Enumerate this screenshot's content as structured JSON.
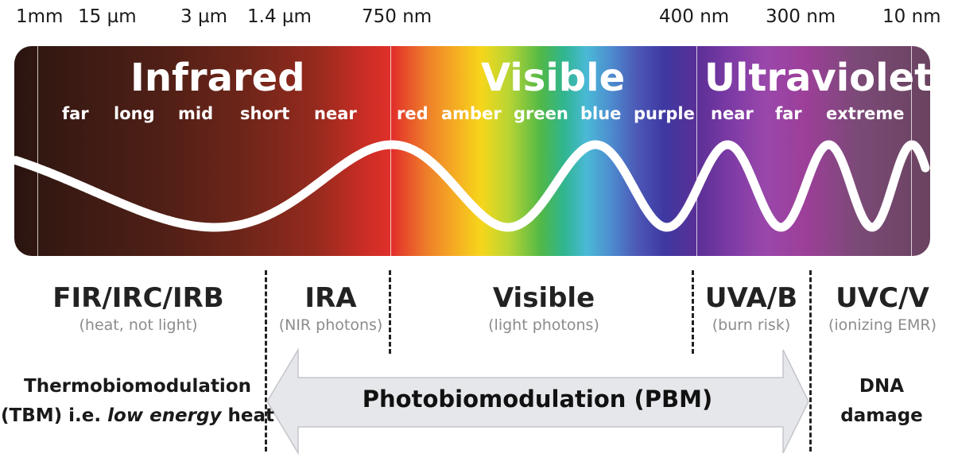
{
  "scale": [
    "1mm",
    "15 µm",
    "3 µm",
    "1.4 µm",
    "750 nm",
    "400 nm",
    "300 nm",
    "10 nm"
  ],
  "regions": {
    "infrared": {
      "title": "Infrared",
      "subs": [
        "far",
        "long",
        "mid",
        "short",
        "near"
      ]
    },
    "visible": {
      "title": "Visible",
      "subs": [
        "red",
        "amber",
        "green",
        "blue",
        "purple"
      ]
    },
    "ultraviolet": {
      "title": "Ultraviolet",
      "subs": [
        "near",
        "far",
        "extreme"
      ]
    }
  },
  "categories": [
    {
      "name": "FIR/IRC/IRB",
      "note": "(heat, not light)"
    },
    {
      "name": "IRA",
      "note": "(NIR photons)"
    },
    {
      "name": "Visible",
      "note": "(light photons)"
    },
    {
      "name": "UVA/B",
      "note": "(burn risk)"
    },
    {
      "name": "UVC/V",
      "note": "(ionizing EMR)"
    }
  ],
  "effects": {
    "tbm_line1": "Thermobiomodulation",
    "tbm_line2_pre": "(TBM) i.e. ",
    "tbm_line2_em": "low energy",
    "tbm_line2_post": " heat",
    "pbm": "Photobiomodulation (PBM)",
    "dna_line1": "DNA",
    "dna_line2": "damage"
  },
  "colors": {
    "arrow_fill": "#e6e7ea",
    "arrow_stroke": "#c4c6cb",
    "wave": "#ffffff"
  }
}
